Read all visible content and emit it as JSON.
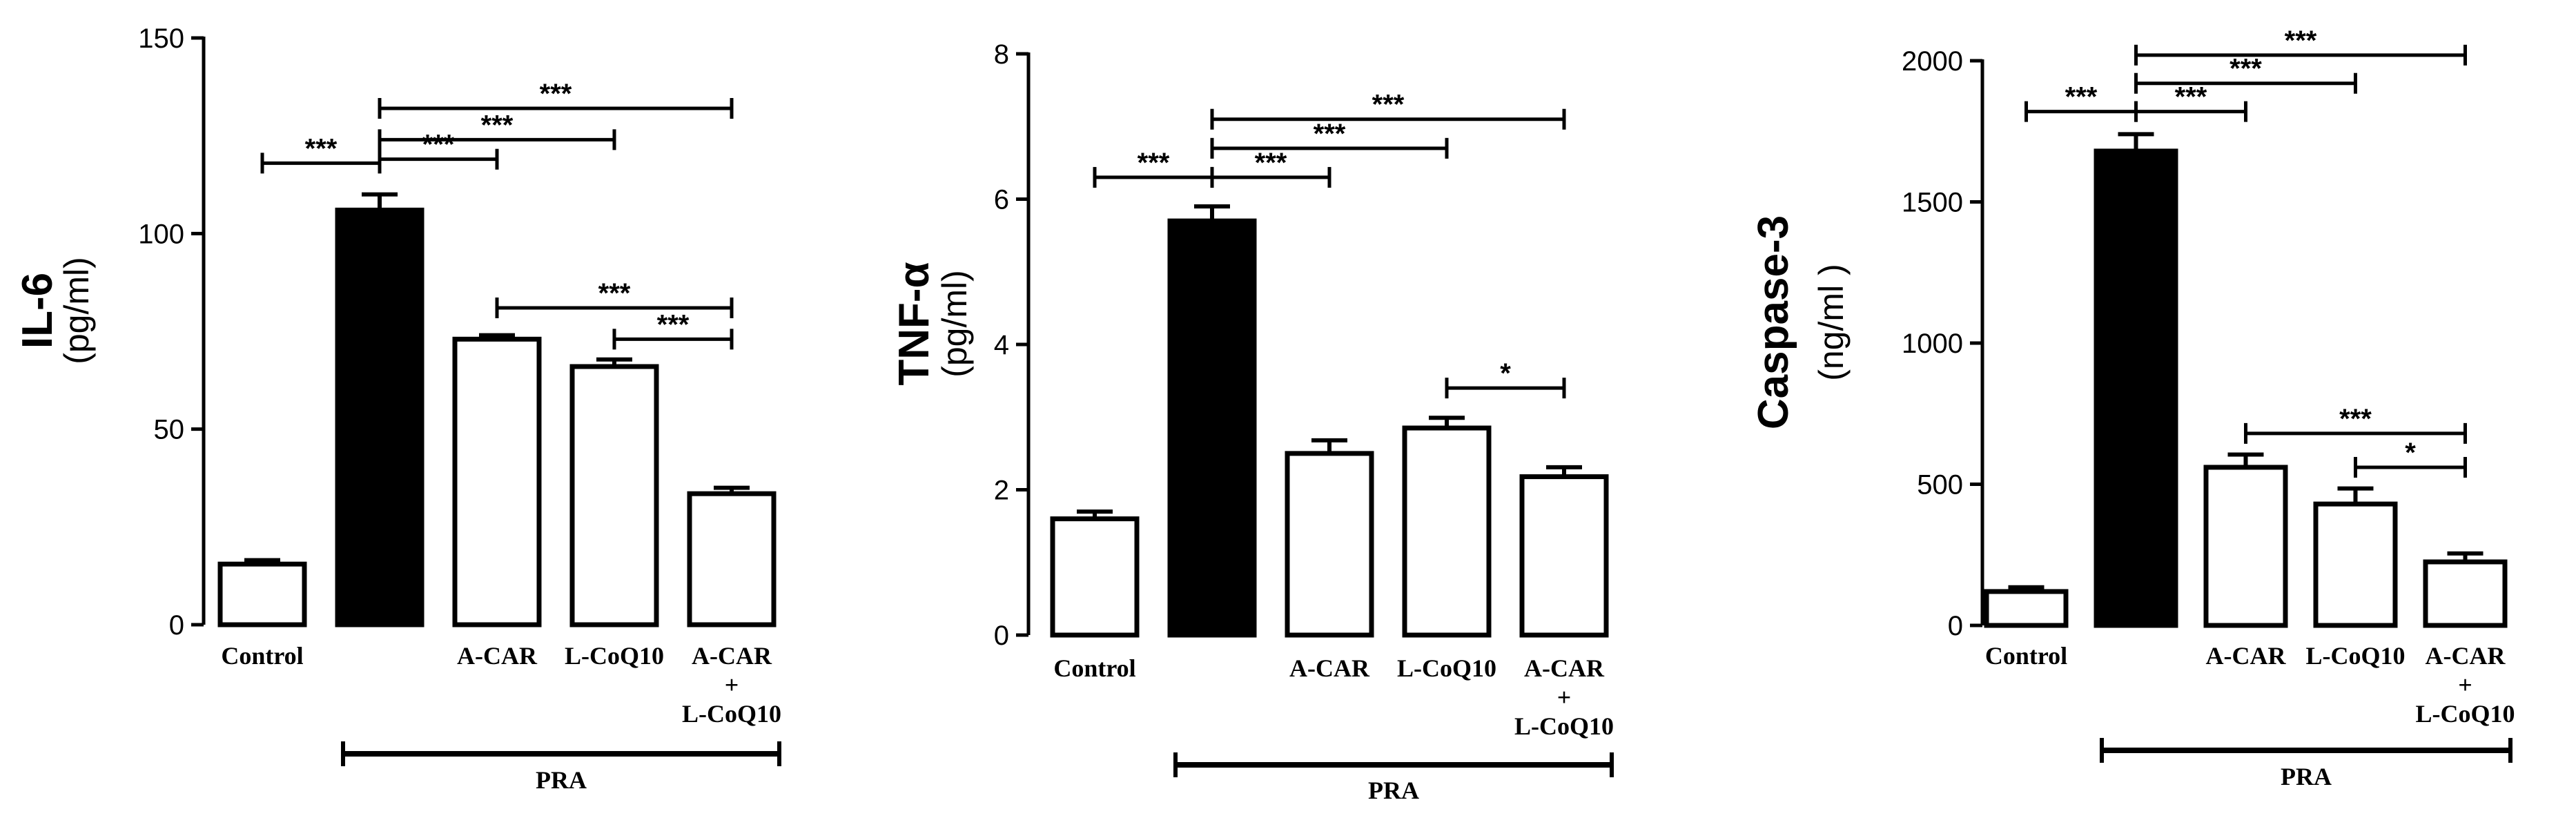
{
  "chart_data": [
    {
      "type": "bar",
      "ylabel_main": "IL-6",
      "ylabel_unit": "(pg/ml)",
      "categories": [
        "Control",
        "",
        "A-CAR",
        "L-CoQ10",
        "A-CAR\n+\nL-CoQ10"
      ],
      "values": [
        15.5,
        106,
        73,
        66,
        33.5
      ],
      "errors": [
        1,
        4,
        1,
        1.8,
        1.5
      ],
      "bar_fill": [
        "#ffffff",
        "#000000",
        "#ffffff",
        "#ffffff",
        "#ffffff"
      ],
      "ylim": [
        0,
        150
      ],
      "yticks": [
        0,
        50,
        100,
        150
      ],
      "group_label": "PRA",
      "group_span": [
        1,
        4
      ],
      "comparisons": [
        {
          "from": 0,
          "to": 1,
          "label": "***",
          "y": 118
        },
        {
          "from": 1,
          "to": 2,
          "label": "***",
          "y": 119
        },
        {
          "from": 1,
          "to": 3,
          "label": "***",
          "y": 124
        },
        {
          "from": 1,
          "to": 4,
          "label": "***",
          "y": 132
        },
        {
          "from": 2,
          "to": 4,
          "label": "***",
          "y": 81
        },
        {
          "from": 3,
          "to": 4,
          "label": "***",
          "y": 73
        }
      ]
    },
    {
      "type": "bar",
      "ylabel_main": "TNF-α",
      "ylabel_unit": "(pg/ml)",
      "categories": [
        "Control",
        "",
        "A-CAR",
        "L-CoQ10",
        "A-CAR\n+\nL-CoQ10"
      ],
      "values": [
        1.6,
        5.7,
        2.5,
        2.85,
        2.18
      ],
      "errors": [
        0.1,
        0.2,
        0.18,
        0.14,
        0.13
      ],
      "bar_fill": [
        "#ffffff",
        "#000000",
        "#ffffff",
        "#ffffff",
        "#ffffff"
      ],
      "ylim": [
        0,
        8
      ],
      "yticks": [
        0,
        2,
        4,
        6,
        8
      ],
      "group_label": "PRA",
      "group_span": [
        1,
        4
      ],
      "comparisons": [
        {
          "from": 0,
          "to": 1,
          "label": "***",
          "y": 6.3
        },
        {
          "from": 1,
          "to": 2,
          "label": "***",
          "y": 6.3
        },
        {
          "from": 1,
          "to": 3,
          "label": "***",
          "y": 6.7
        },
        {
          "from": 1,
          "to": 4,
          "label": "***",
          "y": 7.1
        },
        {
          "from": 3,
          "to": 4,
          "label": "*",
          "y": 3.4
        }
      ]
    },
    {
      "type": "bar",
      "ylabel_main": "Caspase-3",
      "ylabel_unit": "(ng/ml )",
      "categories": [
        "Control",
        "",
        "A-CAR",
        "L-CoQ10",
        "A-CAR\n+\nL-CoQ10"
      ],
      "values": [
        120,
        1680,
        560,
        430,
        225
      ],
      "errors": [
        15,
        60,
        45,
        55,
        30
      ],
      "bar_fill": [
        "#ffffff",
        "#000000",
        "#ffffff",
        "#ffffff",
        "#ffffff"
      ],
      "ylim": [
        0,
        2000
      ],
      "yticks": [
        0,
        500,
        1000,
        1500,
        2000
      ],
      "group_label": "PRA",
      "group_span": [
        1,
        4
      ],
      "comparisons": [
        {
          "from": 0,
          "to": 1,
          "label": "***",
          "y": 1820
        },
        {
          "from": 1,
          "to": 2,
          "label": "***",
          "y": 1820
        },
        {
          "from": 1,
          "to": 3,
          "label": "***",
          "y": 1920
        },
        {
          "from": 1,
          "to": 4,
          "label": "***",
          "y": 2020
        },
        {
          "from": 2,
          "to": 4,
          "label": "***",
          "y": 680
        },
        {
          "from": 3,
          "to": 4,
          "label": "*",
          "y": 560
        }
      ]
    }
  ]
}
